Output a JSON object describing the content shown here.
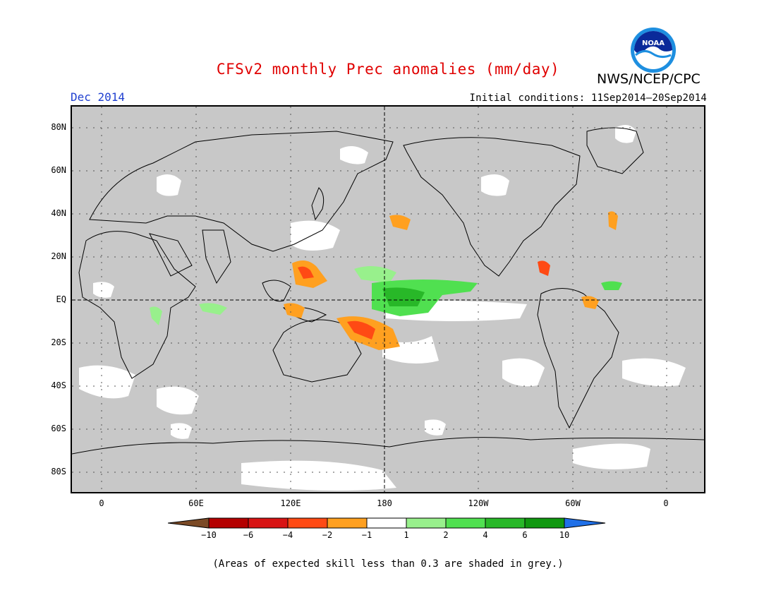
{
  "title": "CFSv2 monthly Prec anomalies (mm/day)",
  "agency": "NWS/NCEP/CPC",
  "logo_text": "NOAA",
  "month": "Dec 2014",
  "initial_conditions": "Initial conditions: 11Sep2014–20Sep2014",
  "lat_labels": [
    "80N",
    "60N",
    "40N",
    "20N",
    "EQ",
    "20S",
    "40S",
    "60S",
    "80S"
  ],
  "lon_labels": [
    "0",
    "60E",
    "120E",
    "180",
    "120W",
    "60W",
    "0"
  ],
  "colorbar": {
    "labels": [
      "−10",
      "−6",
      "−4",
      "−2",
      "−1",
      "1",
      "2",
      "4",
      "6",
      "10"
    ],
    "colors": [
      "#7b4a26",
      "#b40000",
      "#d81414",
      "#ff4a14",
      "#ffa020",
      "#ffffff",
      "#98f08c",
      "#50e050",
      "#28b828",
      "#109810",
      "#2070e8"
    ]
  },
  "colors": {
    "no_skill_grey": "#c8c8c8",
    "title_red": "#e00000",
    "month_blue": "#1f3fd0"
  },
  "footnote": "(Areas of expected skill less than 0.3 are shaded in grey.)"
}
